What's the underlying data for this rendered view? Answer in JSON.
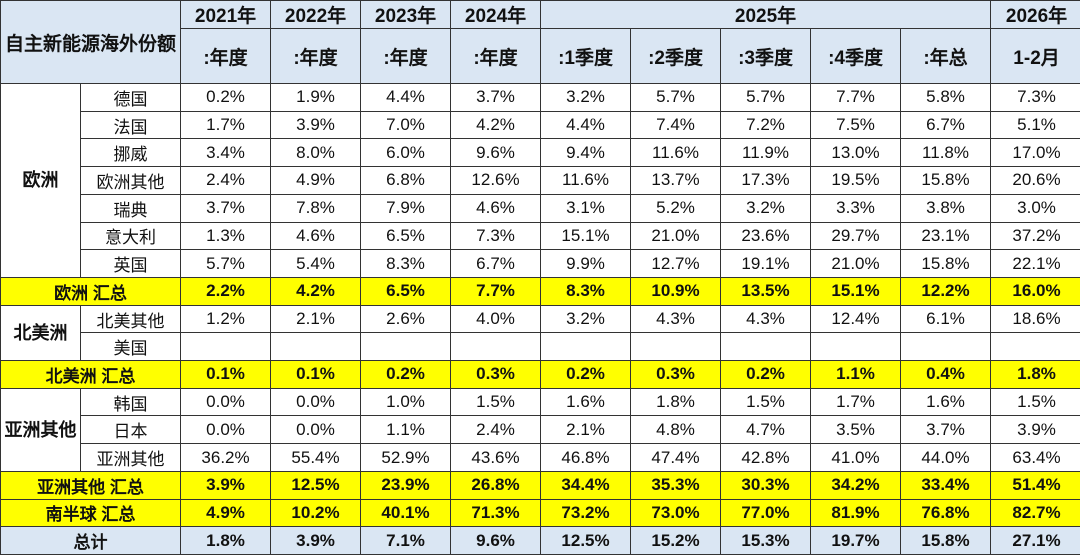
{
  "header": {
    "title": "自主新能源海外份额",
    "years": [
      "2021年",
      "2022年",
      "2023年",
      "2024年",
      "2025年",
      "2026年"
    ],
    "subheaders": [
      ":年度",
      ":年度",
      ":年度",
      ":年度",
      ":1季度",
      ":2季度",
      ":3季度",
      ":4季度",
      ":年总",
      "1-2月"
    ]
  },
  "groups": [
    {
      "region": "欧洲",
      "rows": [
        {
          "name": "德国",
          "values": [
            "0.2%",
            "1.9%",
            "4.4%",
            "3.7%",
            "3.2%",
            "5.7%",
            "5.7%",
            "7.7%",
            "5.8%",
            "7.3%"
          ]
        },
        {
          "name": "法国",
          "values": [
            "1.7%",
            "3.9%",
            "7.0%",
            "4.2%",
            "4.4%",
            "7.4%",
            "7.2%",
            "7.5%",
            "6.7%",
            "5.1%"
          ]
        },
        {
          "name": "挪威",
          "values": [
            "3.4%",
            "8.0%",
            "6.0%",
            "9.6%",
            "9.4%",
            "11.6%",
            "11.9%",
            "13.0%",
            "11.8%",
            "17.0%"
          ]
        },
        {
          "name": "欧洲其他",
          "values": [
            "2.4%",
            "4.9%",
            "6.8%",
            "12.6%",
            "11.6%",
            "13.7%",
            "17.3%",
            "19.5%",
            "15.8%",
            "20.6%"
          ]
        },
        {
          "name": "瑞典",
          "values": [
            "3.7%",
            "7.8%",
            "7.9%",
            "4.6%",
            "3.1%",
            "5.2%",
            "3.2%",
            "3.3%",
            "3.8%",
            "3.0%"
          ]
        },
        {
          "name": "意大利",
          "values": [
            "1.3%",
            "4.6%",
            "6.5%",
            "7.3%",
            "15.1%",
            "21.0%",
            "23.6%",
            "29.7%",
            "23.1%",
            "37.2%"
          ]
        },
        {
          "name": "英国",
          "values": [
            "5.7%",
            "5.4%",
            "8.3%",
            "6.7%",
            "9.9%",
            "12.7%",
            "19.1%",
            "21.0%",
            "15.8%",
            "22.1%"
          ]
        }
      ],
      "total": {
        "label": "欧洲 汇总",
        "values": [
          "2.2%",
          "4.2%",
          "6.5%",
          "7.7%",
          "8.3%",
          "10.9%",
          "13.5%",
          "15.1%",
          "12.2%",
          "16.0%"
        ]
      }
    },
    {
      "region": "北美洲",
      "rows": [
        {
          "name": "北美其他",
          "values": [
            "1.2%",
            "2.1%",
            "2.6%",
            "4.0%",
            "3.2%",
            "4.3%",
            "4.3%",
            "12.4%",
            "6.1%",
            "18.6%"
          ]
        },
        {
          "name": "美国",
          "values": [
            null,
            null,
            null,
            null,
            null,
            null,
            null,
            null,
            null,
            null
          ]
        }
      ],
      "total": {
        "label": "北美洲 汇总",
        "values": [
          "0.1%",
          "0.1%",
          "0.2%",
          "0.3%",
          "0.2%",
          "0.3%",
          "0.2%",
          "1.1%",
          "0.4%",
          "1.8%"
        ]
      }
    },
    {
      "region": "亚洲其他",
      "rows": [
        {
          "name": "韩国",
          "values": [
            "0.0%",
            "0.0%",
            "1.0%",
            "1.5%",
            "1.6%",
            "1.8%",
            "1.5%",
            "1.7%",
            "1.6%",
            "1.5%"
          ]
        },
        {
          "name": "日本",
          "values": [
            "0.0%",
            "0.0%",
            "1.1%",
            "2.4%",
            "2.1%",
            "4.8%",
            "4.7%",
            "3.5%",
            "3.7%",
            "3.9%"
          ]
        },
        {
          "name": "亚洲其他",
          "values": [
            "36.2%",
            "55.4%",
            "52.9%",
            "43.6%",
            "46.8%",
            "47.4%",
            "42.8%",
            "41.0%",
            "44.0%",
            "63.4%"
          ]
        }
      ],
      "total": {
        "label": "亚洲其他 汇总",
        "values": [
          "3.9%",
          "12.5%",
          "23.9%",
          "26.8%",
          "34.4%",
          "35.3%",
          "30.3%",
          "34.2%",
          "33.4%",
          "51.4%"
        ]
      }
    }
  ],
  "southern": {
    "label": "南半球 汇总",
    "values": [
      "4.9%",
      "10.2%",
      "40.1%",
      "71.3%",
      "73.2%",
      "73.0%",
      "77.0%",
      "81.9%",
      "76.8%",
      "82.7%"
    ]
  },
  "grand_total": {
    "label": "总计",
    "values": [
      "1.8%",
      "3.9%",
      "7.1%",
      "9.6%",
      "12.5%",
      "15.2%",
      "15.3%",
      "19.7%",
      "15.8%",
      "27.1%"
    ]
  }
}
